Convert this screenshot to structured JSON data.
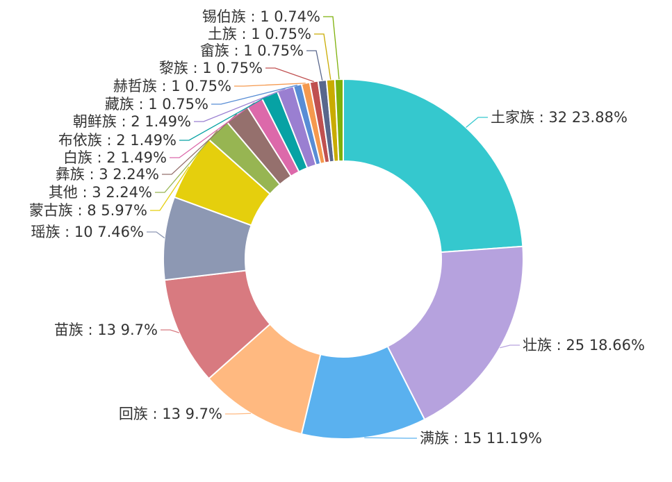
{
  "chart_data": {
    "type": "pie",
    "variant": "donut",
    "label_format": "{name} : {count} {percent}",
    "slices": [
      {
        "name": "土家族",
        "count": 32,
        "percent": "23.88%",
        "color": "#35C8CE"
      },
      {
        "name": "壮族",
        "count": 25,
        "percent": "18.66%",
        "color": "#B6A2DE"
      },
      {
        "name": "满族",
        "count": 15,
        "percent": "11.19%",
        "color": "#5AB1EF"
      },
      {
        "name": "回族",
        "count": 13,
        "percent": "9.7%",
        "color": "#FFB980"
      },
      {
        "name": "苗族",
        "count": 13,
        "percent": "9.7%",
        "color": "#D87A80"
      },
      {
        "name": "瑶族",
        "count": 10,
        "percent": "7.46%",
        "color": "#8D98B3"
      },
      {
        "name": "蒙古族",
        "count": 8,
        "percent": "5.97%",
        "color": "#E5CF0D"
      },
      {
        "name": "其他",
        "count": 3,
        "percent": "2.24%",
        "color": "#97B552"
      },
      {
        "name": "彝族",
        "count": 3,
        "percent": "2.24%",
        "color": "#95706D"
      },
      {
        "name": "白族",
        "count": 2,
        "percent": "1.49%",
        "color": "#DC69AA"
      },
      {
        "name": "布依族",
        "count": 2,
        "percent": "1.49%",
        "color": "#07A2A4"
      },
      {
        "name": "朝鲜族",
        "count": 2,
        "percent": "1.49%",
        "color": "#9A7FD1"
      },
      {
        "name": "藏族",
        "count": 1,
        "percent": "0.75%",
        "color": "#588DD5"
      },
      {
        "name": "赫哲族",
        "count": 1,
        "percent": "0.75%",
        "color": "#F5994E"
      },
      {
        "name": "黎族",
        "count": 1,
        "percent": "0.75%",
        "color": "#C05050"
      },
      {
        "name": "畲族",
        "count": 1,
        "percent": "0.75%",
        "color": "#59678C"
      },
      {
        "name": "土族",
        "count": 1,
        "percent": "0.75%",
        "color": "#C9AB00"
      },
      {
        "name": "锡伯族",
        "count": 1,
        "percent": "0.74%",
        "color": "#7EB00A"
      }
    ]
  }
}
